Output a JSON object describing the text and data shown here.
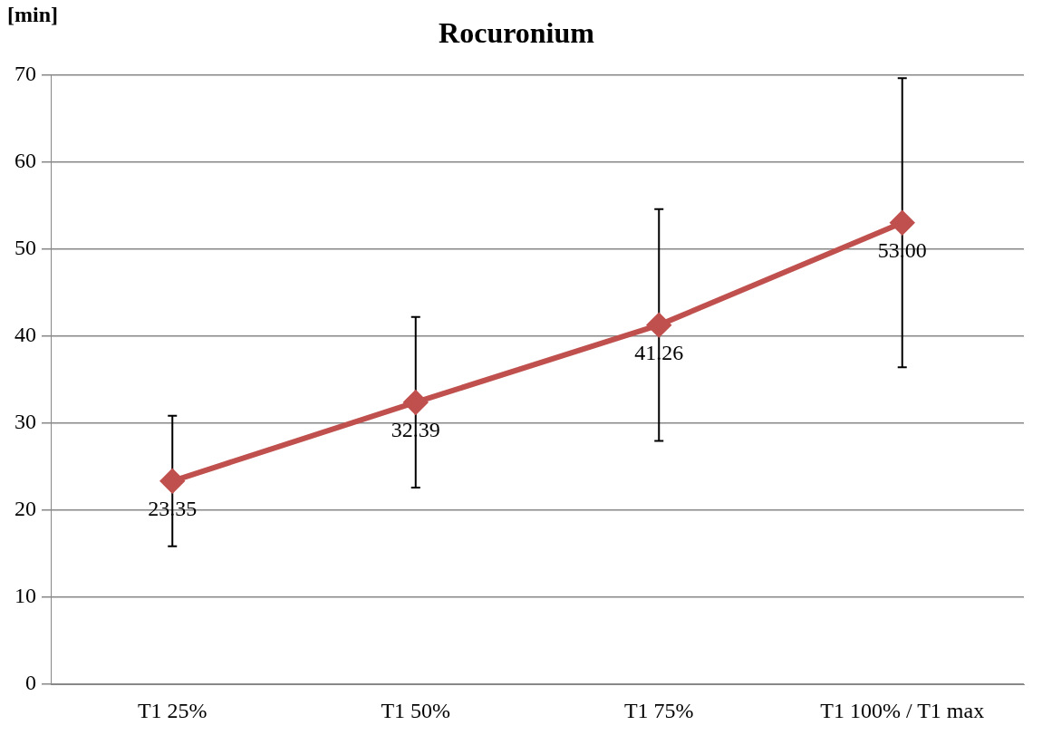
{
  "chart_data": {
    "type": "line",
    "title": "Rocuronium",
    "ylabel": "[min]",
    "categories": [
      "T1 25%",
      "T1 50%",
      "T1 75%",
      "T1 100% / T1 max"
    ],
    "series": [
      {
        "color": "#c0504d",
        "values": [
          23.35,
          32.39,
          41.26,
          53.0
        ],
        "errors": [
          7.5,
          9.8,
          13.3,
          16.6
        ],
        "value_labels": [
          "23.35",
          "32.39",
          "41.26",
          "53.00"
        ]
      }
    ],
    "ylim": [
      0,
      70
    ],
    "yticks": [
      0,
      10,
      20,
      30,
      40,
      50,
      60,
      70
    ],
    "grid": "y",
    "legend": false,
    "marker": "diamond",
    "line_style": "solid"
  }
}
